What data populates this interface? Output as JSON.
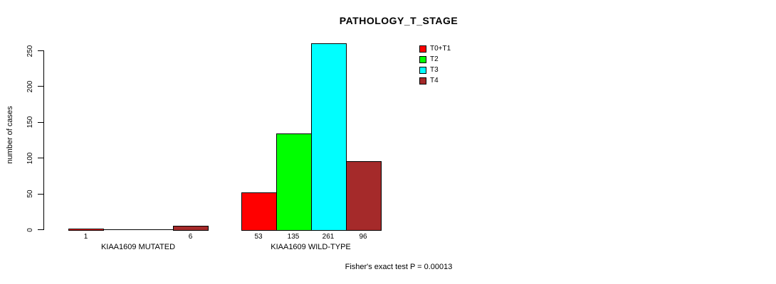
{
  "chart_data": {
    "type": "bar",
    "title": "PATHOLOGY_T_STAGE",
    "xlabel": "",
    "ylabel": "number of cases",
    "ylim": [
      0,
      250
    ],
    "yticks": [
      0,
      50,
      100,
      150,
      200,
      250
    ],
    "grid": false,
    "legend_position": "top-right",
    "hide_zero_bar_labels": true,
    "categories": [
      "KIAA1609 MUTATED",
      "KIAA1609 WILD-TYPE"
    ],
    "series": [
      {
        "name": "T0+T1",
        "color": "#ff0000",
        "values": [
          1,
          53
        ]
      },
      {
        "name": "T2",
        "color": "#00ff00",
        "values": [
          0,
          135
        ]
      },
      {
        "name": "T3",
        "color": "#00ffff",
        "values": [
          0,
          261
        ]
      },
      {
        "name": "T4",
        "color": "#a52a2a",
        "values": [
          6,
          96
        ]
      }
    ],
    "annotation": "Fisher's exact test P = 0.00013"
  },
  "colors": {
    "axis": "#000000",
    "background": "#ffffff",
    "text": "#000000"
  }
}
